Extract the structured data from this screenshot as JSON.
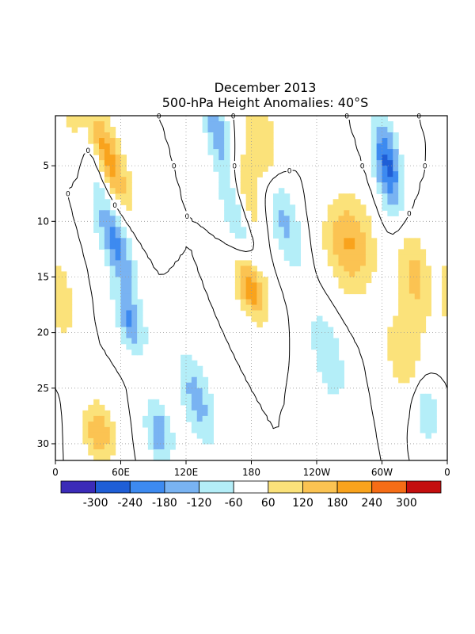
{
  "chart_data": {
    "type": "heatmap",
    "title": "December 2013",
    "subtitle": "500-hPa Height Anomalies: 40°S",
    "x_axis": {
      "type": "longitude",
      "range_deg_east": [
        0,
        360
      ],
      "ticks": [
        {
          "lon": 0,
          "label": "0"
        },
        {
          "lon": 60,
          "label": "60E"
        },
        {
          "lon": 120,
          "label": "120E"
        },
        {
          "lon": 180,
          "label": "180"
        },
        {
          "lon": 240,
          "label": "120W"
        },
        {
          "lon": 300,
          "label": "60W"
        },
        {
          "lon": 360,
          "label": "0"
        }
      ]
    },
    "y_axis": {
      "type": "day",
      "range": [
        1,
        31
      ],
      "inverted": true,
      "ticks": [
        5,
        10,
        15,
        20,
        25,
        30
      ]
    },
    "grid": "dotted",
    "zero_contour_label": "0",
    "colorbar": {
      "labels": [
        "-300",
        "-240",
        "-180",
        "-120",
        "-60",
        "60",
        "120",
        "180",
        "240",
        "300"
      ],
      "bins": [
        {
          "range": [
            -360,
            -300
          ],
          "color": "#3b2bb8"
        },
        {
          "range": [
            -300,
            -240
          ],
          "color": "#1f5ed6"
        },
        {
          "range": [
            -240,
            -180
          ],
          "color": "#3d8af0"
        },
        {
          "range": [
            -180,
            -120
          ],
          "color": "#79b3f2"
        },
        {
          "range": [
            -120,
            -60
          ],
          "color": "#b4eef8"
        },
        {
          "range": [
            -60,
            60
          ],
          "color": "#ffffff"
        },
        {
          "range": [
            60,
            120
          ],
          "color": "#fbe27a"
        },
        {
          "range": [
            120,
            180
          ],
          "color": "#fbc352"
        },
        {
          "range": [
            180,
            240
          ],
          "color": "#f9a31d"
        },
        {
          "range": [
            240,
            300
          ],
          "color": "#f56d16"
        },
        {
          "range": [
            300,
            360
          ],
          "color": "#c40f0f"
        }
      ]
    },
    "anomaly_features_m": [
      {
        "lon": 20,
        "day": 1,
        "lon_drift_deg_per_day": 3.2,
        "amp": 120,
        "sigma_lon": 10,
        "sigma_day": 3
      },
      {
        "lon": 45,
        "day": 4,
        "lon_drift_deg_per_day": 2.6,
        "amp": 150,
        "sigma_lon": 9,
        "sigma_day": 3
      },
      {
        "lon": 50,
        "day": 5,
        "lon_drift_deg_per_day": 3.4,
        "amp": 130,
        "sigma_lon": 10,
        "sigma_day": 3
      },
      {
        "lon": 35,
        "day": 4,
        "lon_drift_deg_per_day": 2.8,
        "amp": -180,
        "sigma_lon": 8,
        "sigma_day": 3
      },
      {
        "lon": 55,
        "day": 12,
        "lon_drift_deg_per_day": 2.8,
        "amp": -210,
        "sigma_lon": 9,
        "sigma_day": 3
      },
      {
        "lon": 68,
        "day": 19,
        "lon_drift_deg_per_day": 2.5,
        "amp": -190,
        "sigma_lon": 8,
        "sigma_day": 2
      },
      {
        "lon": 150,
        "day": 2,
        "lon_drift_deg_per_day": 3.0,
        "amp": -190,
        "sigma_lon": 8,
        "sigma_day": 3
      },
      {
        "lon": 165,
        "day": 9,
        "lon_drift_deg_per_day": 2.6,
        "amp": -150,
        "sigma_lon": 8,
        "sigma_day": 3
      },
      {
        "lon": 180,
        "day": 16,
        "lon_drift_deg_per_day": 2.6,
        "amp": 240,
        "sigma_lon": 9,
        "sigma_day": 2
      },
      {
        "lon": 172,
        "day": 7,
        "lon_drift_deg_per_day": 2.6,
        "amp": 150,
        "sigma_lon": 9,
        "sigma_day": 3
      },
      {
        "lon": 210,
        "day": 10,
        "lon_drift_deg_per_day": 2.4,
        "amp": -150,
        "sigma_lon": 9,
        "sigma_day": 3
      },
      {
        "lon": 270,
        "day": 12,
        "lon_drift_deg_per_day": 1.0,
        "amp": 190,
        "sigma_lon": 15,
        "sigma_day": 3
      },
      {
        "lon": 305,
        "day": 5,
        "lon_drift_deg_per_day": 1.5,
        "amp": -270,
        "sigma_lon": 8,
        "sigma_day": 3
      },
      {
        "lon": 190,
        "day": 3,
        "lon_drift_deg_per_day": 1.5,
        "amp": 130,
        "sigma_lon": 10,
        "sigma_day": 3
      },
      {
        "lon": 330,
        "day": 15,
        "lon_drift_deg_per_day": 1.5,
        "amp": 150,
        "sigma_lon": 10,
        "sigma_day": 3
      },
      {
        "lon": 320,
        "day": 22,
        "lon_drift_deg_per_day": 1.5,
        "amp": 110,
        "sigma_lon": 12,
        "sigma_day": 3
      },
      {
        "lon": 250,
        "day": 22,
        "lon_drift_deg_per_day": 2.0,
        "amp": -120,
        "sigma_lon": 10,
        "sigma_day": 3
      },
      {
        "lon": 130,
        "day": 26,
        "lon_drift_deg_per_day": 2.5,
        "amp": -150,
        "sigma_lon": 10,
        "sigma_day": 3
      },
      {
        "lon": 40,
        "day": 29,
        "lon_drift_deg_per_day": 1.0,
        "amp": 170,
        "sigma_lon": 10,
        "sigma_day": 2
      },
      {
        "lon": 95,
        "day": 29,
        "lon_drift_deg_per_day": 1.5,
        "amp": -180,
        "sigma_lon": 8,
        "sigma_day": 2
      },
      {
        "lon": 340,
        "day": 27,
        "lon_drift_deg_per_day": 1.0,
        "amp": -130,
        "sigma_lon": 8,
        "sigma_day": 2
      },
      {
        "lon": 5,
        "day": 17,
        "lon_drift_deg_per_day": 1.0,
        "amp": 110,
        "sigma_lon": 8,
        "sigma_day": 3
      }
    ]
  }
}
